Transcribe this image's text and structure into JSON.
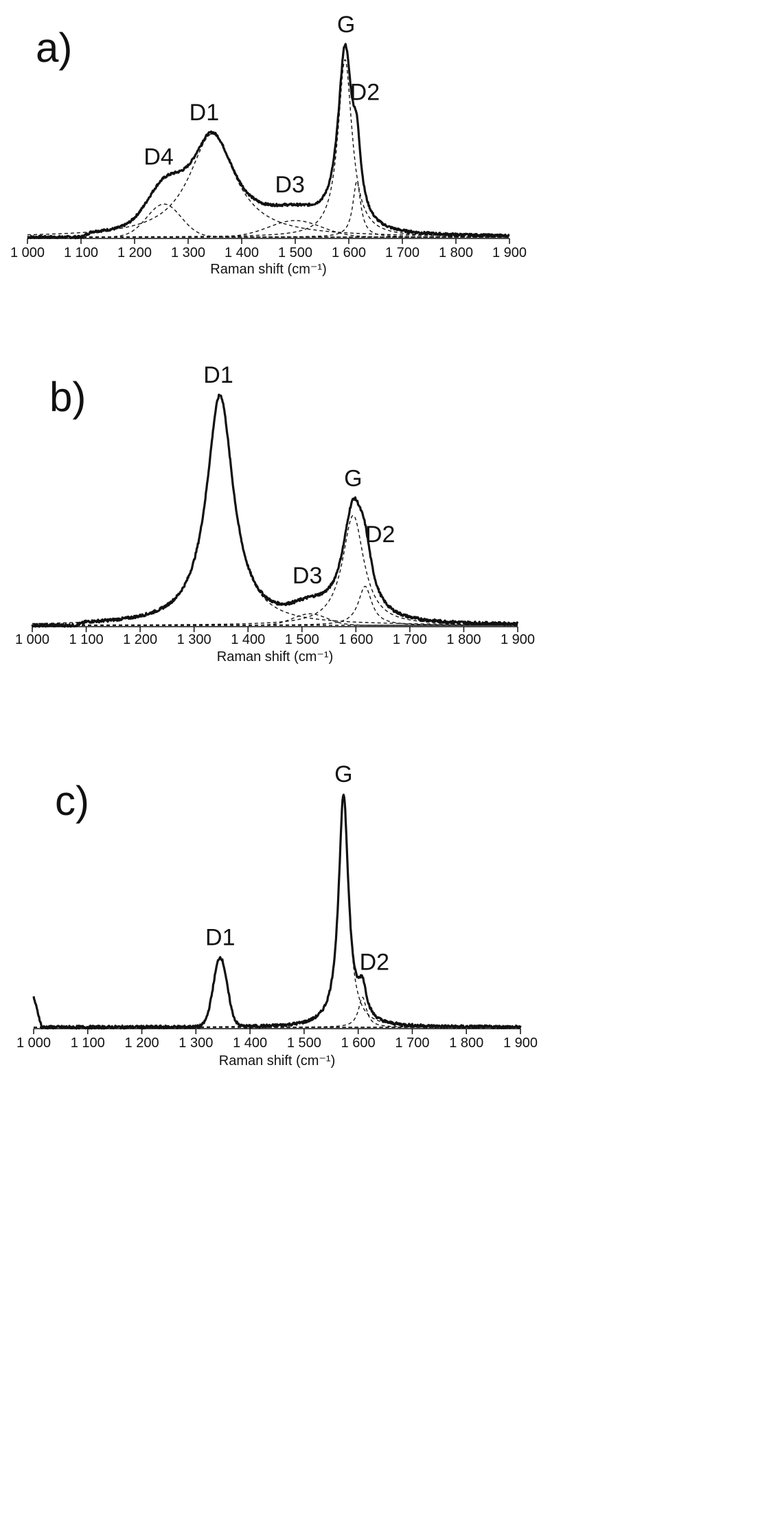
{
  "chart_data": [
    {
      "type": "line",
      "panel_label": "a)",
      "xlabel": "Raman shift (cm⁻¹)",
      "xlim": [
        1000,
        1900
      ],
      "xticks": [
        "1 000",
        "1 100",
        "1 200",
        "1 300",
        "1 400",
        "1 500",
        "1 600",
        "1 700",
        "1 800",
        "1 900"
      ],
      "y_axis_shown": false,
      "grid": false,
      "peak_labels": [
        {
          "text": "D4",
          "x": 1245
        },
        {
          "text": "D1",
          "x": 1330
        },
        {
          "text": "D3",
          "x": 1490
        },
        {
          "text": "G",
          "x": 1595
        },
        {
          "text": "D2",
          "x": 1630
        }
      ],
      "peaks": [
        {
          "name": "D4",
          "center": 1255,
          "height": 0.16,
          "width": 45,
          "shape": "gauss"
        },
        {
          "name": "D1",
          "center": 1345,
          "height": 0.5,
          "width": 52,
          "shape": "lorentz"
        },
        {
          "name": "D3",
          "center": 1500,
          "height": 0.08,
          "width": 70,
          "shape": "gauss"
        },
        {
          "name": "G",
          "center": 1593,
          "height": 0.86,
          "width": 16,
          "shape": "lorentz"
        },
        {
          "name": "D2",
          "center": 1615,
          "height": 0.27,
          "width": 9,
          "shape": "lorentz"
        }
      ],
      "onset": 1120,
      "measured_ymax": 0.99
    },
    {
      "type": "line",
      "panel_label": "b)",
      "xlabel": "Raman shift (cm⁻¹)",
      "xlim": [
        1000,
        1900
      ],
      "xticks": [
        "1 000",
        "1 100",
        "1 200",
        "1 300",
        "1 400",
        "1 500",
        "1 600",
        "1 700",
        "1 800",
        "1 900"
      ],
      "y_axis_shown": false,
      "grid": false,
      "peak_labels": [
        {
          "text": "D1",
          "x": 1345
        },
        {
          "text": "D3",
          "x": 1510
        },
        {
          "text": "G",
          "x": 1595
        },
        {
          "text": "D2",
          "x": 1645
        }
      ],
      "peaks": [
        {
          "name": "D1",
          "center": 1348,
          "height": 1.0,
          "width": 30,
          "shape": "lorentz"
        },
        {
          "name": "D3",
          "center": 1515,
          "height": 0.05,
          "width": 45,
          "shape": "gauss"
        },
        {
          "name": "G",
          "center": 1595,
          "height": 0.48,
          "width": 24,
          "shape": "lorentz"
        },
        {
          "name": "D2",
          "center": 1617,
          "height": 0.17,
          "width": 15,
          "shape": "lorentz"
        }
      ],
      "onset": 1100,
      "measured_ymax": 1.0
    },
    {
      "type": "line",
      "panel_label": "c)",
      "xlabel": "Raman shift (cm⁻¹)",
      "xlim": [
        1000,
        1900
      ],
      "xticks": [
        "1 000",
        "1 100",
        "1 200",
        "1 300",
        "1 400",
        "1 500",
        "1 600",
        "1 700",
        "1 800",
        "1 900"
      ],
      "y_axis_shown": false,
      "grid": false,
      "peak_labels": [
        {
          "text": "D1",
          "x": 1345
        },
        {
          "text": "G",
          "x": 1573
        },
        {
          "text": "D2",
          "x": 1630
        }
      ],
      "peaks": [
        {
          "name": "D1",
          "center": 1345,
          "height": 0.3,
          "width": 18,
          "shape": "gauss"
        },
        {
          "name": "G",
          "center": 1573,
          "height": 1.0,
          "width": 11,
          "shape": "lorentz"
        },
        {
          "name": "D2",
          "center": 1608,
          "height": 0.13,
          "width": 9,
          "shape": "lorentz"
        }
      ],
      "onset": 1000,
      "measured_ymax": 1.0
    }
  ]
}
